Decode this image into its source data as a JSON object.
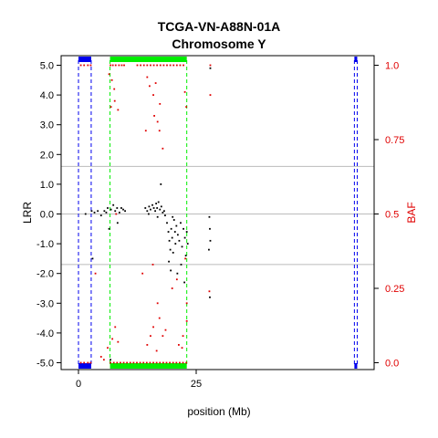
{
  "chart_data": {
    "type": "scatter",
    "title": "TCGA-VN-A88N-01A",
    "subtitle": "Chromosome Y",
    "xlabel": "position (Mb)",
    "ylabel": "LRR",
    "y2label": "BAF",
    "xlim": [
      -2,
      59
    ],
    "ylim": [
      -5.3,
      5.3
    ],
    "y2lim": [
      0,
      1
    ],
    "x_ticks": [
      0,
      25
    ],
    "y_ticks": [
      "5.0",
      "4.0",
      "3.0",
      "2.0",
      "1.0",
      "0.0",
      "-1.0",
      "-2.0",
      "-3.0",
      "-4.0",
      "-5.0"
    ],
    "y2_ticks": [
      "1.0",
      "0.75",
      "0.5",
      "0.25",
      "0.0"
    ],
    "grid_lines_lrr": [
      1.6,
      -1.7,
      0.0
    ],
    "colors": {
      "lrr": "#000000",
      "baf": "#e00000",
      "segment": "#00ee00",
      "region": "#0000ee",
      "gridline": "#bbbbbb"
    },
    "regions_blue": [
      [
        0,
        2.7
      ],
      [
        58.6,
        59.2
      ]
    ],
    "segments_green": [
      [
        6.7,
        23.0
      ]
    ],
    "series": [
      {
        "points": [
          [
            2.8,
            0.1
          ],
          [
            3.4,
            0.05
          ],
          [
            4.1,
            0.1
          ],
          [
            4.8,
            -0.05
          ],
          [
            5.5,
            0.1
          ],
          [
            6.2,
            0.2
          ],
          [
            6.9,
            0.15
          ],
          [
            7.4,
            0.3
          ],
          [
            7.8,
            0.1
          ],
          [
            8.2,
            0.2
          ],
          [
            8.7,
            0.05
          ],
          [
            9.1,
            0.2
          ],
          [
            9.5,
            0.15
          ],
          [
            6.5,
            -0.5
          ],
          [
            8.3,
            -0.3
          ],
          [
            14.2,
            0.2
          ],
          [
            14.6,
            0.1
          ],
          [
            15.0,
            0.25
          ],
          [
            15.3,
            0.15
          ],
          [
            15.7,
            0.3
          ],
          [
            16.0,
            0.2
          ],
          [
            16.3,
            0.1
          ],
          [
            16.7,
            0.2
          ],
          [
            17.0,
            0.4
          ],
          [
            17.3,
            0.15
          ],
          [
            17.6,
            0.25
          ],
          [
            17.9,
            0.05
          ],
          [
            18.2,
            0.1
          ],
          [
            14.9,
            0.0
          ],
          [
            16.5,
            0.35
          ],
          [
            16.8,
            -0.1
          ],
          [
            17.5,
            1.0
          ],
          [
            18.4,
            -0.05
          ],
          [
            18.8,
            -0.3
          ],
          [
            19.1,
            -0.6
          ],
          [
            19.3,
            -0.9
          ],
          [
            19.5,
            -1.2
          ],
          [
            19.7,
            -0.5
          ],
          [
            19.9,
            -0.8
          ],
          [
            20.1,
            -1.3
          ],
          [
            20.3,
            -0.2
          ],
          [
            20.5,
            -0.6
          ],
          [
            19.2,
            -1.6
          ],
          [
            19.6,
            -1.9
          ],
          [
            20.0,
            -0.1
          ],
          [
            20.6,
            -1.0
          ],
          [
            20.8,
            -0.4
          ],
          [
            21.1,
            -0.7
          ],
          [
            21.4,
            -0.9
          ],
          [
            21.7,
            -0.3
          ],
          [
            22.0,
            -1.1
          ],
          [
            22.3,
            -0.5
          ],
          [
            22.6,
            -0.8
          ],
          [
            22.8,
            -1.4
          ],
          [
            21.0,
            -2.0
          ],
          [
            21.8,
            -1.7
          ],
          [
            22.5,
            -2.3
          ],
          [
            23.0,
            -0.6
          ],
          [
            3.0,
            -1.5
          ],
          [
            6.8,
            -4.9
          ],
          [
            27.8,
            -0.1
          ],
          [
            27.9,
            -0.5
          ],
          [
            28.0,
            -0.9
          ],
          [
            27.7,
            -1.2
          ],
          [
            27.9,
            -2.8
          ],
          [
            28.0,
            4.9
          ],
          [
            1.5,
            0.0
          ],
          [
            5.9,
            0.05
          ],
          [
            9.9,
            0.1
          ],
          [
            23.2,
            -1.0
          ]
        ]
      },
      {
        "points": [
          [
            0.5,
            1.0
          ],
          [
            1.2,
            1.0
          ],
          [
            2.0,
            1.0
          ],
          [
            2.6,
            1.0
          ],
          [
            6.8,
            1.0
          ],
          [
            7.3,
            1.0
          ],
          [
            7.9,
            1.0
          ],
          [
            8.6,
            1.0
          ],
          [
            9.2,
            1.0
          ],
          [
            9.7,
            1.0
          ],
          [
            12.5,
            1.0
          ],
          [
            13.2,
            1.0
          ],
          [
            13.9,
            1.0
          ],
          [
            14.6,
            1.0
          ],
          [
            15.3,
            1.0
          ],
          [
            16.0,
            1.0
          ],
          [
            16.7,
            1.0
          ],
          [
            17.4,
            1.0
          ],
          [
            18.1,
            1.0
          ],
          [
            18.8,
            1.0
          ],
          [
            19.5,
            1.0
          ],
          [
            20.2,
            1.0
          ],
          [
            20.9,
            1.0
          ],
          [
            21.6,
            1.0
          ],
          [
            22.3,
            1.0
          ],
          [
            28.0,
            1.0
          ],
          [
            0.5,
            0.0
          ],
          [
            1.2,
            0.0
          ],
          [
            2.0,
            0.0
          ],
          [
            2.6,
            0.0
          ],
          [
            6.8,
            0.0
          ],
          [
            7.5,
            0.0
          ],
          [
            8.2,
            0.0
          ],
          [
            8.9,
            0.0
          ],
          [
            9.6,
            0.0
          ],
          [
            10.3,
            0.0
          ],
          [
            11.0,
            0.0
          ],
          [
            11.7,
            0.0
          ],
          [
            12.4,
            0.0
          ],
          [
            13.1,
            0.0
          ],
          [
            13.8,
            0.0
          ],
          [
            14.5,
            0.0
          ],
          [
            15.2,
            0.0
          ],
          [
            15.9,
            0.0
          ],
          [
            16.6,
            0.0
          ],
          [
            17.3,
            0.0
          ],
          [
            18.0,
            0.0
          ],
          [
            18.7,
            0.0
          ],
          [
            19.4,
            0.0
          ],
          [
            20.1,
            0.0
          ],
          [
            20.8,
            0.0
          ],
          [
            21.5,
            0.0
          ],
          [
            22.2,
            0.0
          ],
          [
            22.9,
            0.0
          ],
          [
            6.5,
            0.97
          ],
          [
            7.1,
            0.95
          ],
          [
            7.6,
            0.92
          ],
          [
            6.9,
            0.86
          ],
          [
            7.7,
            0.88
          ],
          [
            8.4,
            0.85
          ],
          [
            14.6,
            0.96
          ],
          [
            15.1,
            0.93
          ],
          [
            15.9,
            0.9
          ],
          [
            16.4,
            0.94
          ],
          [
            17.3,
            0.87
          ],
          [
            16.1,
            0.83
          ],
          [
            16.8,
            0.81
          ],
          [
            17.2,
            0.78
          ],
          [
            14.3,
            0.78
          ],
          [
            17.9,
            0.72
          ],
          [
            22.9,
            0.86
          ],
          [
            22.6,
            0.91
          ],
          [
            28.0,
            0.9
          ],
          [
            3.6,
            0.3
          ],
          [
            6.2,
            0.05
          ],
          [
            7.2,
            0.08
          ],
          [
            7.8,
            0.12
          ],
          [
            8.4,
            0.07
          ],
          [
            14.6,
            0.06
          ],
          [
            15.3,
            0.09
          ],
          [
            15.9,
            0.12
          ],
          [
            16.6,
            0.04
          ],
          [
            17.2,
            0.15
          ],
          [
            17.9,
            0.09
          ],
          [
            18.5,
            0.11
          ],
          [
            21.3,
            0.06
          ],
          [
            22.2,
            0.09
          ],
          [
            23.0,
            0.14
          ],
          [
            13.6,
            0.3
          ],
          [
            15.8,
            0.33
          ],
          [
            16.8,
            0.2
          ],
          [
            19.9,
            0.25
          ],
          [
            20.9,
            0.28
          ],
          [
            22.0,
            0.05
          ],
          [
            8.0,
            0.5
          ],
          [
            23.0,
            0.2
          ],
          [
            22.7,
            0.35
          ],
          [
            27.8,
            0.24
          ],
          [
            4.8,
            0.02
          ],
          [
            5.4,
            0.01
          ]
        ]
      }
    ]
  }
}
